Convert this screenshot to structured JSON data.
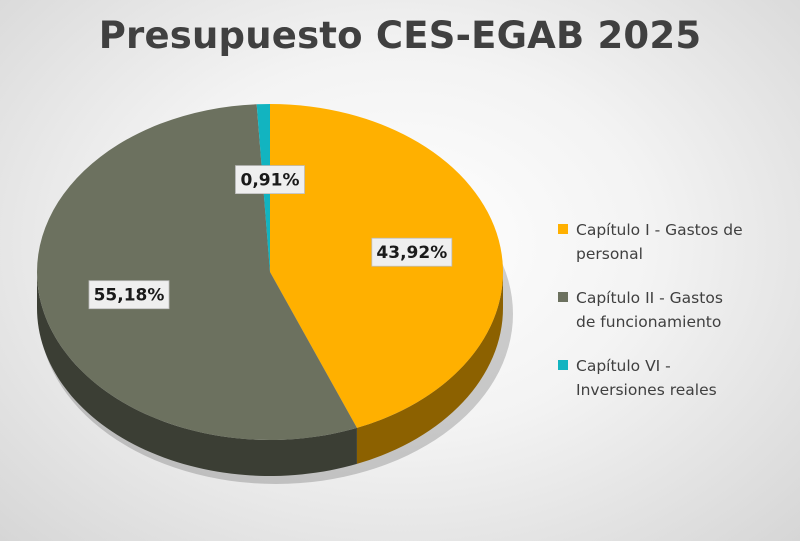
{
  "chart_data": {
    "type": "pie",
    "title": "Presupuesto CES-EGAB 2025",
    "categories": [
      "Capítulo I - Gastos de personal",
      "Capítulo II - Gastos de funcionamiento",
      "Capítulo VI - Inversiones reales"
    ],
    "values": [
      43.92,
      55.18,
      0.91
    ],
    "data_labels": [
      "43,92%",
      "55,18%",
      "0,91%"
    ],
    "colors": [
      "#FFB000",
      "#6C715F",
      "#12B4C0"
    ],
    "legend_position": "right",
    "style": "3d"
  },
  "legend": {
    "items": [
      {
        "line1": "Capítulo I - Gastos de",
        "line2": "personal"
      },
      {
        "line1": "Capítulo II - Gastos",
        "line2": "de funcionamiento"
      },
      {
        "line1": "Capítulo VI -",
        "line2": "Inversiones reales"
      }
    ]
  }
}
